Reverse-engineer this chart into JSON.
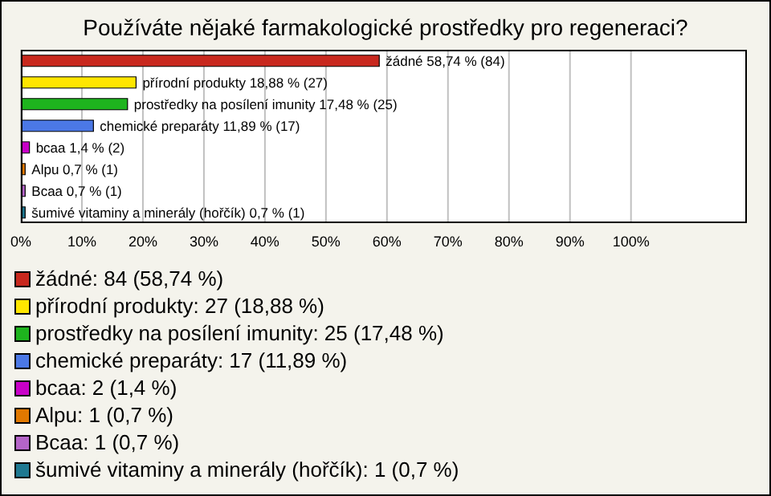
{
  "chart_data": {
    "type": "bar",
    "orientation": "horizontal",
    "title": "Používáte nějaké farmakologické prostředky pro regeneraci?",
    "categories": [
      "žádné",
      "přírodní produkty",
      "prostředky na posílení imunity",
      "chemické preparáty",
      "bcaa",
      "Alpu",
      "Bcaa",
      "šumivé vitaminy a minerály (hořčík)"
    ],
    "values": [
      58.74,
      18.88,
      17.48,
      11.89,
      1.4,
      0.7,
      0.7,
      0.7
    ],
    "value_labels": [
      "58,74 % (84)",
      "18,88 % (27)",
      "17,48 % (25)",
      "11,89 % (17)",
      "1,4 % (2)",
      "0,7 % (1)",
      "0,7 % (1)",
      "0,7 % (1)"
    ],
    "colors": [
      "#c8281e",
      "#ffe600",
      "#1eb41e",
      "#4b78e6",
      "#c800c8",
      "#e07800",
      "#b464c8",
      "#1e7891"
    ],
    "xlim": [
      0,
      119
    ],
    "xticks": [
      {
        "value": 0,
        "label": "0%"
      },
      {
        "value": 10,
        "label": "10%"
      },
      {
        "value": 20,
        "label": "20%"
      },
      {
        "value": 30,
        "label": "30%"
      },
      {
        "value": 40,
        "label": "40%"
      },
      {
        "value": 50,
        "label": "50%"
      },
      {
        "value": 60,
        "label": "60%"
      },
      {
        "value": 70,
        "label": "70%"
      },
      {
        "value": 80,
        "label": "80%"
      },
      {
        "value": 90,
        "label": "90%"
      },
      {
        "value": 100,
        "label": "100%"
      }
    ],
    "grid": "x",
    "tick_labels": "x",
    "annotations": [
      "žádné: 84 (58,74 %)",
      "přírodní produkty: 27 (18,88 %)",
      "prostředky na posílení imunity: 25 (17,48 %)",
      "chemické preparáty: 17 (11,89 %)",
      "bcaa: 2 (1,4 %)",
      "Alpu: 1 (0,7 %)",
      "Bcaa: 1 (0,7 %)",
      "šumivé vitaminy a minerály (hořčík): 1 (0,7 %)"
    ]
  }
}
